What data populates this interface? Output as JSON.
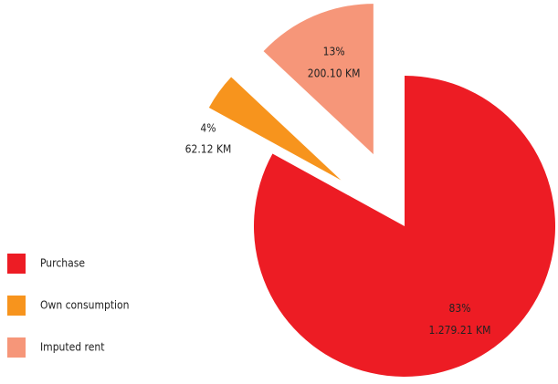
{
  "chart_data": {
    "type": "pie",
    "categories": [
      "Purchase",
      "Own consumption",
      "Imputed rent"
    ],
    "values": [
      83,
      4,
      13
    ],
    "value_labels": [
      "83%",
      "4%",
      "13%"
    ],
    "amounts": [
      1279.21,
      62.12,
      200.1
    ],
    "amount_labels": [
      "1.279.21 KM",
      "62.12 KM",
      "200.10 KM"
    ],
    "colors": [
      "#ed1c24",
      "#f7941d",
      "#f69679"
    ],
    "exploded": [
      false,
      true,
      true
    ],
    "legend": "left"
  }
}
